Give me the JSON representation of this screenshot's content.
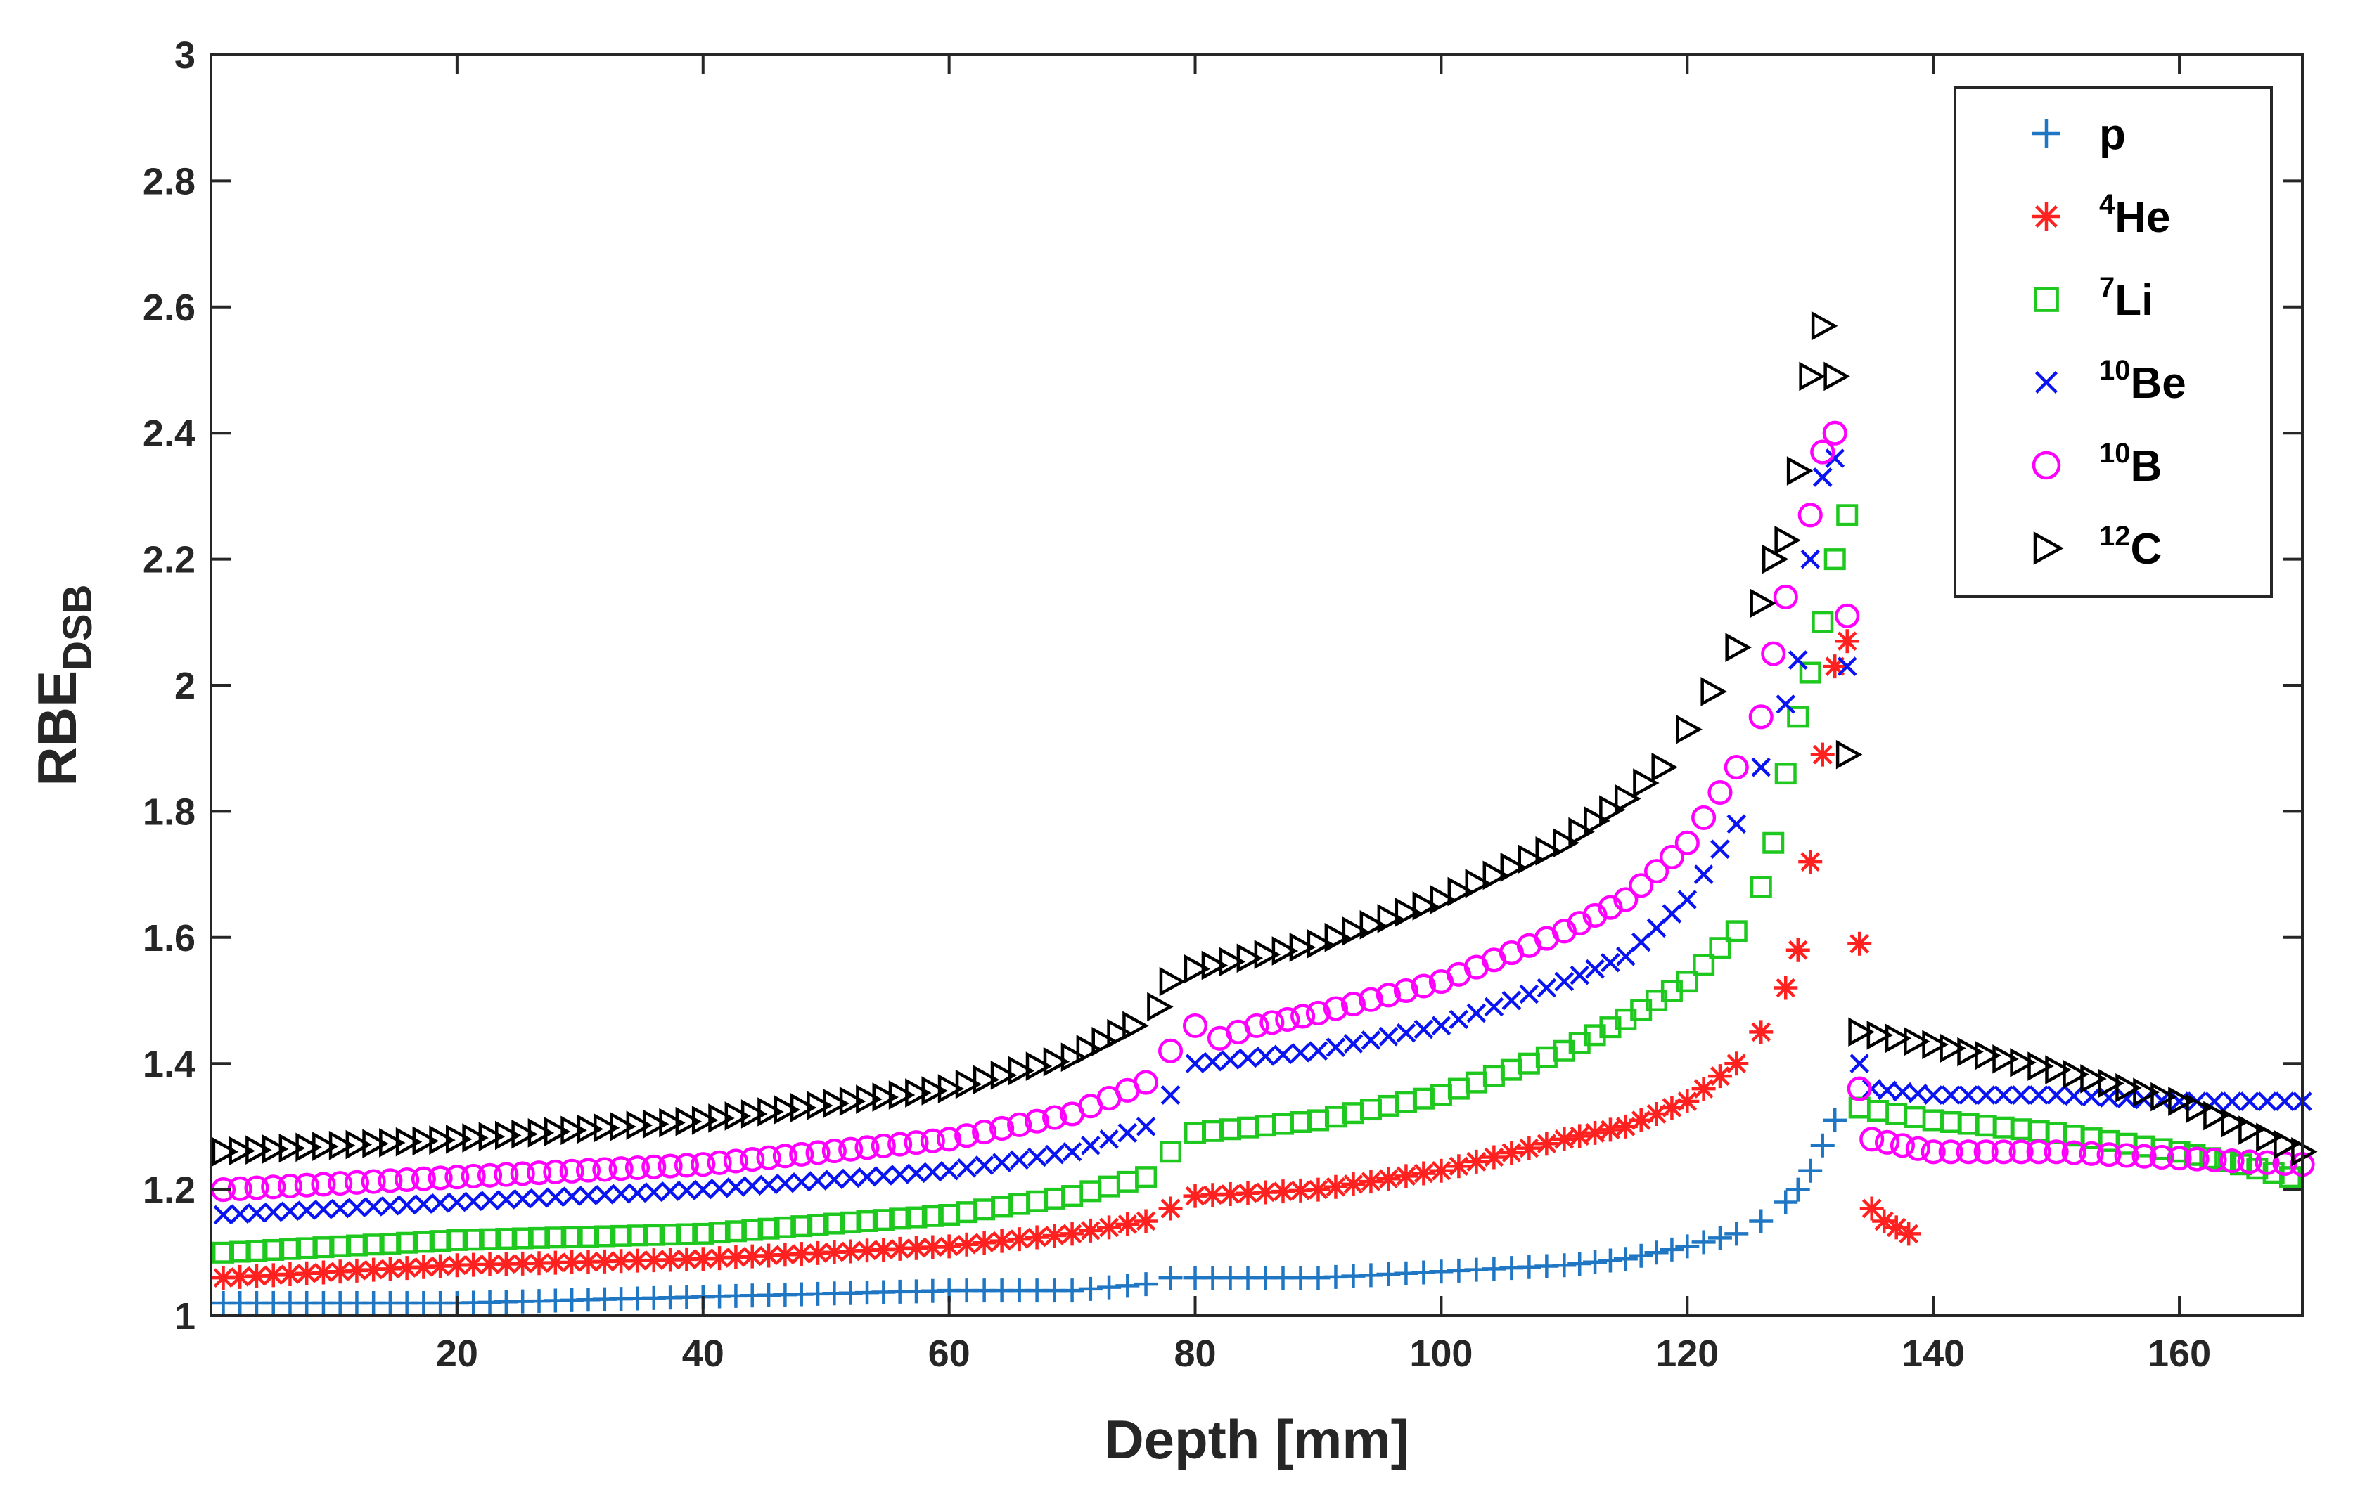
{
  "chart_data": {
    "type": "scatter",
    "title": "",
    "xlabel": "Depth [mm]",
    "ylabel_main": "RBE",
    "ylabel_sub": "DSB",
    "xlim": [
      0,
      170
    ],
    "ylim": [
      1,
      3
    ],
    "xticks": [
      20,
      40,
      60,
      80,
      100,
      120,
      140,
      160
    ],
    "yticks": [
      1,
      1.2,
      1.4,
      1.6,
      1.8,
      2,
      2.2,
      2.4,
      2.6,
      2.8,
      3
    ],
    "xtick_labels": [
      "20",
      "40",
      "60",
      "80",
      "100",
      "120",
      "140",
      "160"
    ],
    "ytick_labels": [
      "1",
      "1.2",
      "1.4",
      "1.6",
      "1.8",
      "2",
      "2.2",
      "2.4",
      "2.6",
      "2.8",
      "3"
    ],
    "grid": false,
    "legend_position": "top-right",
    "series": [
      {
        "name_sup": "",
        "name_main": "p",
        "marker": "plus",
        "color": "#1f77c4",
        "points": [
          [
            1,
            1.02
          ],
          [
            20,
            1.02
          ],
          [
            40,
            1.03
          ],
          [
            60,
            1.04
          ],
          [
            70,
            1.04
          ],
          [
            76,
            1.05
          ],
          [
            78,
            1.06
          ],
          [
            80,
            1.06
          ],
          [
            90,
            1.06
          ],
          [
            100,
            1.07
          ],
          [
            110,
            1.08
          ],
          [
            115,
            1.09
          ],
          [
            120,
            1.11
          ],
          [
            124,
            1.13
          ],
          [
            126,
            1.15
          ],
          [
            128,
            1.18
          ],
          [
            129,
            1.2
          ],
          [
            130,
            1.23
          ],
          [
            131,
            1.27
          ],
          [
            132,
            1.31
          ]
        ]
      },
      {
        "name_sup": "4",
        "name_main": "He",
        "marker": "asterisk",
        "color": "#ff2020",
        "points": [
          [
            1,
            1.06
          ],
          [
            20,
            1.08
          ],
          [
            40,
            1.09
          ],
          [
            60,
            1.11
          ],
          [
            70,
            1.13
          ],
          [
            76,
            1.15
          ],
          [
            78,
            1.17
          ],
          [
            80,
            1.19
          ],
          [
            90,
            1.2
          ],
          [
            100,
            1.23
          ],
          [
            110,
            1.28
          ],
          [
            115,
            1.3
          ],
          [
            120,
            1.34
          ],
          [
            124,
            1.4
          ],
          [
            126,
            1.45
          ],
          [
            128,
            1.52
          ],
          [
            129,
            1.58
          ],
          [
            130,
            1.72
          ],
          [
            131,
            1.89
          ],
          [
            132,
            2.03
          ],
          [
            133,
            2.07
          ],
          [
            134,
            1.59
          ],
          [
            135,
            1.17
          ],
          [
            136,
            1.15
          ],
          [
            137,
            1.14
          ],
          [
            138,
            1.13
          ]
        ]
      },
      {
        "name_sup": "7",
        "name_main": "Li",
        "marker": "square",
        "color": "#1ec81e",
        "points": [
          [
            1,
            1.1
          ],
          [
            20,
            1.12
          ],
          [
            40,
            1.13
          ],
          [
            60,
            1.16
          ],
          [
            70,
            1.19
          ],
          [
            76,
            1.22
          ],
          [
            78,
            1.26
          ],
          [
            80,
            1.29
          ],
          [
            90,
            1.31
          ],
          [
            100,
            1.35
          ],
          [
            110,
            1.42
          ],
          [
            115,
            1.47
          ],
          [
            120,
            1.53
          ],
          [
            124,
            1.61
          ],
          [
            126,
            1.68
          ],
          [
            127,
            1.75
          ],
          [
            128,
            1.86
          ],
          [
            129,
            1.95
          ],
          [
            130,
            2.02
          ],
          [
            131,
            2.1
          ],
          [
            132,
            2.2
          ],
          [
            133,
            2.27
          ],
          [
            134,
            1.33
          ],
          [
            140,
            1.31
          ],
          [
            150,
            1.29
          ],
          [
            160,
            1.26
          ],
          [
            165,
            1.24
          ],
          [
            169,
            1.22
          ]
        ]
      },
      {
        "name_sup": "10",
        "name_main": "Be",
        "marker": "x",
        "color": "#0a14f0",
        "points": [
          [
            1,
            1.16
          ],
          [
            20,
            1.18
          ],
          [
            40,
            1.2
          ],
          [
            60,
            1.23
          ],
          [
            70,
            1.26
          ],
          [
            76,
            1.3
          ],
          [
            78,
            1.35
          ],
          [
            80,
            1.4
          ],
          [
            90,
            1.42
          ],
          [
            100,
            1.46
          ],
          [
            110,
            1.53
          ],
          [
            115,
            1.57
          ],
          [
            120,
            1.66
          ],
          [
            124,
            1.78
          ],
          [
            126,
            1.87
          ],
          [
            128,
            1.97
          ],
          [
            129,
            2.04
          ],
          [
            130,
            2.2
          ],
          [
            131,
            2.33
          ],
          [
            132,
            2.36
          ],
          [
            133,
            2.03
          ],
          [
            134,
            1.4
          ],
          [
            135,
            1.36
          ],
          [
            140,
            1.35
          ],
          [
            150,
            1.35
          ],
          [
            160,
            1.34
          ],
          [
            170,
            1.34
          ]
        ]
      },
      {
        "name_sup": "10",
        "name_main": "B",
        "marker": "circle",
        "color": "#ff00ff",
        "points": [
          [
            1,
            1.2
          ],
          [
            20,
            1.22
          ],
          [
            40,
            1.24
          ],
          [
            60,
            1.28
          ],
          [
            70,
            1.32
          ],
          [
            76,
            1.37
          ],
          [
            78,
            1.42
          ],
          [
            80,
            1.46
          ],
          [
            82,
            1.44
          ],
          [
            85,
            1.46
          ],
          [
            90,
            1.48
          ],
          [
            100,
            1.53
          ],
          [
            110,
            1.61
          ],
          [
            115,
            1.66
          ],
          [
            120,
            1.75
          ],
          [
            124,
            1.87
          ],
          [
            126,
            1.95
          ],
          [
            127,
            2.05
          ],
          [
            128,
            2.14
          ],
          [
            130,
            2.27
          ],
          [
            131,
            2.37
          ],
          [
            132,
            2.4
          ],
          [
            133,
            2.11
          ],
          [
            134,
            1.36
          ],
          [
            135,
            1.28
          ],
          [
            140,
            1.26
          ],
          [
            150,
            1.26
          ],
          [
            160,
            1.25
          ],
          [
            170,
            1.24
          ]
        ]
      },
      {
        "name_sup": "12",
        "name_main": "C",
        "marker": "triangle-right",
        "color": "#000000",
        "points": [
          [
            1,
            1.26
          ],
          [
            20,
            1.28
          ],
          [
            40,
            1.31
          ],
          [
            60,
            1.36
          ],
          [
            70,
            1.41
          ],
          [
            75,
            1.46
          ],
          [
            77,
            1.49
          ],
          [
            78,
            1.53
          ],
          [
            80,
            1.55
          ],
          [
            90,
            1.59
          ],
          [
            100,
            1.66
          ],
          [
            110,
            1.75
          ],
          [
            115,
            1.82
          ],
          [
            118,
            1.87
          ],
          [
            120,
            1.93
          ],
          [
            122,
            1.99
          ],
          [
            124,
            2.06
          ],
          [
            126,
            2.13
          ],
          [
            127,
            2.2
          ],
          [
            128,
            2.23
          ],
          [
            129,
            2.34
          ],
          [
            130,
            2.49
          ],
          [
            131,
            2.57
          ],
          [
            132,
            2.49
          ],
          [
            133,
            1.89
          ],
          [
            134,
            1.45
          ],
          [
            140,
            1.43
          ],
          [
            150,
            1.39
          ],
          [
            160,
            1.34
          ],
          [
            170,
            1.26
          ]
        ]
      }
    ]
  }
}
